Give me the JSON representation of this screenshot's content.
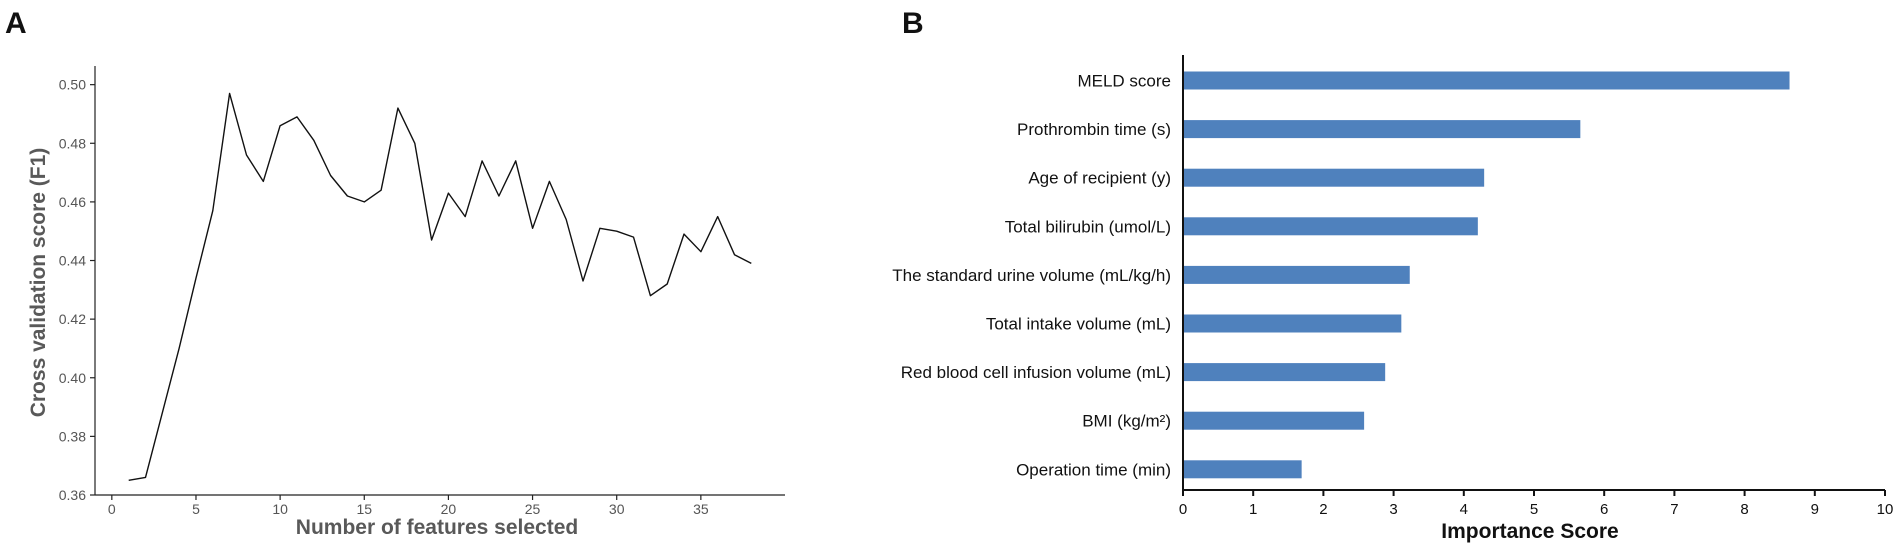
{
  "chart_data": [
    {
      "panel": "A",
      "type": "line",
      "xlabel": "Number of features selected",
      "ylabel": "Cross validation score (F1)",
      "xlim": [
        -1,
        40
      ],
      "ylim": [
        0.36,
        0.505
      ],
      "xticks": [
        0,
        5,
        10,
        15,
        20,
        25,
        30,
        35
      ],
      "yticks": [
        0.36,
        0.38,
        0.4,
        0.42,
        0.44,
        0.46,
        0.48,
        0.5
      ],
      "ytick_labels": [
        "0.36",
        "0.38",
        "0.40",
        "0.42",
        "0.44",
        "0.46",
        "0.48",
        "0.50"
      ],
      "line_color": "#111111",
      "x": [
        1,
        2,
        3,
        4,
        5,
        6,
        7,
        8,
        9,
        10,
        11,
        12,
        13,
        14,
        15,
        16,
        17,
        18,
        19,
        20,
        21,
        22,
        23,
        24,
        25,
        26,
        27,
        28,
        29,
        30,
        31,
        32,
        33,
        34,
        35,
        36,
        37,
        38
      ],
      "values": [
        0.365,
        0.366,
        0.388,
        0.41,
        0.434,
        0.457,
        0.497,
        0.476,
        0.467,
        0.486,
        0.489,
        0.481,
        0.469,
        0.462,
        0.46,
        0.464,
        0.492,
        0.48,
        0.447,
        0.463,
        0.455,
        0.474,
        0.462,
        0.474,
        0.451,
        0.467,
        0.454,
        0.433,
        0.451,
        0.45,
        0.448,
        0.428,
        0.432,
        0.449,
        0.443,
        0.455,
        0.442,
        0.439
      ]
    },
    {
      "panel": "B",
      "type": "bar",
      "orientation": "horizontal",
      "xlabel": "Importance Score",
      "ylabel": "",
      "xlim": [
        0,
        10
      ],
      "xticks": [
        0,
        1,
        2,
        3,
        4,
        5,
        6,
        7,
        8,
        9,
        10
      ],
      "bar_color": "#4f81bd",
      "categories": [
        "MELD score",
        "Prothrombin time (s)",
        "Age of recipient (y)",
        "Total bilirubin (umol/L)",
        "The standard urine volume (mL/kg/h)",
        "Total intake volume (mL)",
        "Red blood cell infusion volume (mL)",
        "BMI (kg/m²)",
        "Operation time (min)"
      ],
      "values": [
        8.64,
        5.66,
        4.29,
        4.2,
        3.23,
        3.11,
        2.88,
        2.58,
        1.69
      ]
    }
  ]
}
